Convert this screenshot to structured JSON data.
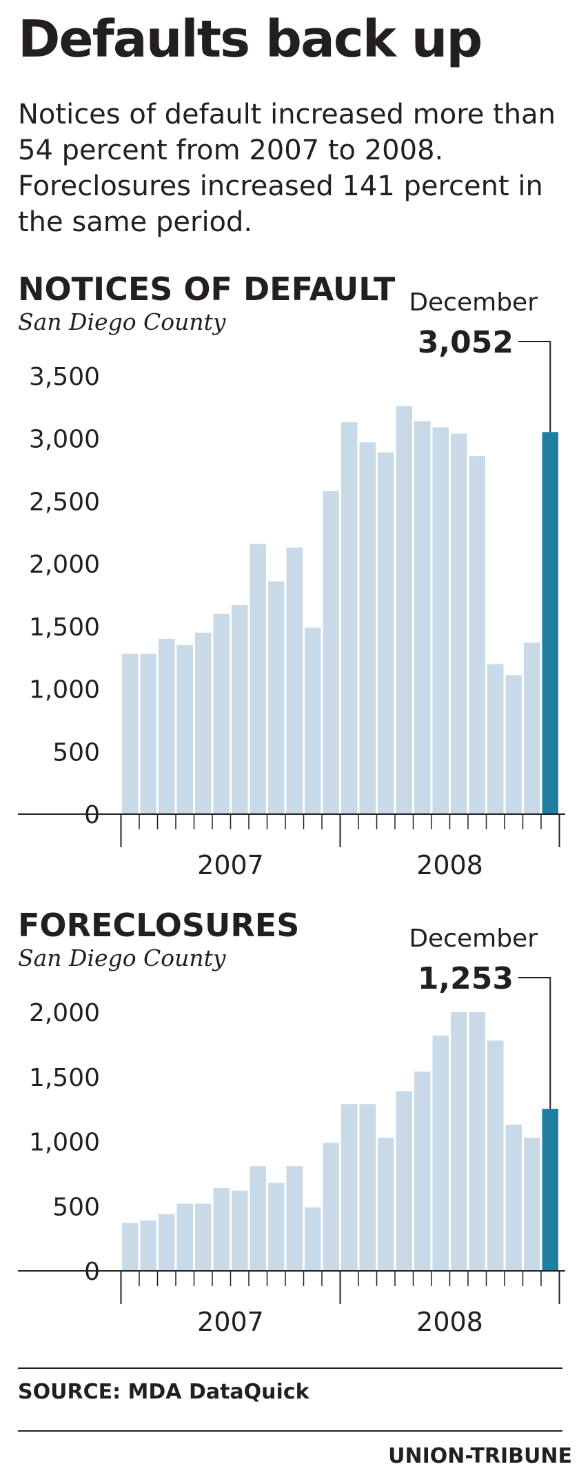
{
  "headline": "Defaults back up",
  "intro": "Notices of default increased more than 54 percent from 2007 to 2008. Foreclosures increased 141 percent in the same period.",
  "chart_data": [
    {
      "type": "bar",
      "title": "NOTICES OF DEFAULT",
      "subtitle": "San Diego County",
      "ylim": [
        0,
        3500
      ],
      "yticks": [
        0,
        500,
        1000,
        1500,
        2000,
        2500,
        3000,
        3500
      ],
      "ytick_labels": [
        "0",
        "500",
        "1,000",
        "1,500",
        "2,000",
        "2,500",
        "3,000",
        "3,500"
      ],
      "x_labels": [
        "2007",
        "2008"
      ],
      "categories": [
        "Jan 2007",
        "Feb 2007",
        "Mar 2007",
        "Apr 2007",
        "May 2007",
        "Jun 2007",
        "Jul 2007",
        "Aug 2007",
        "Sep 2007",
        "Oct 2007",
        "Nov 2007",
        "Dec 2007",
        "Jan 2008",
        "Feb 2008",
        "Mar 2008",
        "Apr 2008",
        "May 2008",
        "Jun 2008",
        "Jul 2008",
        "Aug 2008",
        "Sep 2008",
        "Oct 2008",
        "Nov 2008",
        "Dec 2008"
      ],
      "values": [
        1280,
        1280,
        1400,
        1350,
        1450,
        1600,
        1670,
        2160,
        1860,
        2130,
        1490,
        2580,
        3130,
        2970,
        2890,
        3260,
        3140,
        3090,
        3040,
        2860,
        1200,
        1110,
        1370,
        3052
      ],
      "highlight_index": 23,
      "annotation": {
        "label": "December",
        "value": "3,052"
      },
      "colors": {
        "bar": "#c8dae8",
        "highlight": "#1e7fa3"
      }
    },
    {
      "type": "bar",
      "title": "FORECLOSURES",
      "subtitle": "San Diego County",
      "ylim": [
        0,
        2000
      ],
      "yticks": [
        0,
        500,
        1000,
        1500,
        2000
      ],
      "ytick_labels": [
        "0",
        "500",
        "1,000",
        "1,500",
        "2,000"
      ],
      "x_labels": [
        "2007",
        "2008"
      ],
      "categories": [
        "Jan 2007",
        "Feb 2007",
        "Mar 2007",
        "Apr 2007",
        "May 2007",
        "Jun 2007",
        "Jul 2007",
        "Aug 2007",
        "Sep 2007",
        "Oct 2007",
        "Nov 2007",
        "Dec 2007",
        "Jan 2008",
        "Feb 2008",
        "Mar 2008",
        "Apr 2008",
        "May 2008",
        "Jun 2008",
        "Jul 2008",
        "Aug 2008",
        "Sep 2008",
        "Oct 2008",
        "Nov 2008",
        "Dec 2008"
      ],
      "values": [
        370,
        390,
        440,
        520,
        520,
        640,
        620,
        810,
        680,
        810,
        490,
        990,
        1290,
        1290,
        1030,
        1390,
        1540,
        1820,
        2000,
        2000,
        1780,
        1130,
        1030,
        1253
      ],
      "highlight_index": 23,
      "annotation": {
        "label": "December",
        "value": "1,253"
      },
      "colors": {
        "bar": "#c8dae8",
        "highlight": "#1e7fa3"
      }
    }
  ],
  "source": "SOURCE: MDA DataQuick",
  "credit": "UNION-TRIBUNE"
}
